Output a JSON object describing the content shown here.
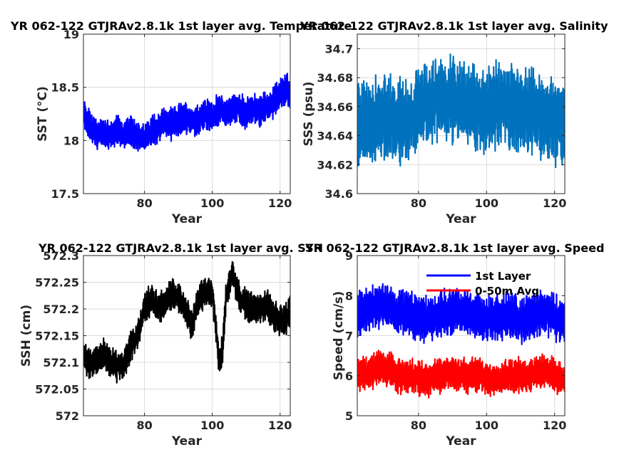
{
  "figure": {
    "background": "#ffffff"
  },
  "chart_data": [
    {
      "type": "line",
      "title": "YR 062-122 GTJRAv2.8.1k 1st layer avg. Temperature",
      "xlabel": "Year",
      "ylabel": "SST (°C)",
      "xlim": [
        62,
        123
      ],
      "ylim": [
        17.5,
        19
      ],
      "xticks": [
        80,
        100,
        120
      ],
      "xtick_labels": [
        "80",
        "100",
        "120"
      ],
      "yticks": [
        17.5,
        18,
        18.5,
        19
      ],
      "ytick_labels": [
        "17.5",
        "18",
        "18.5",
        "19"
      ],
      "grid": true,
      "legend": null,
      "series": [
        {
          "color": "#0000ff",
          "x": [
            62,
            64,
            66,
            68,
            70,
            72,
            74,
            76,
            78,
            80,
            82,
            84,
            86,
            88,
            90,
            92,
            94,
            96,
            98,
            100,
            102,
            104,
            106,
            108,
            110,
            112,
            114,
            116,
            118,
            120,
            122,
            123
          ],
          "values": [
            18.25,
            18.15,
            18.05,
            18.08,
            18.05,
            18.1,
            18.05,
            18.08,
            18.05,
            18.0,
            18.1,
            18.12,
            18.18,
            18.15,
            18.2,
            18.22,
            18.18,
            18.2,
            18.25,
            18.22,
            18.3,
            18.25,
            18.3,
            18.3,
            18.25,
            18.3,
            18.28,
            18.32,
            18.35,
            18.45,
            18.5,
            18.4
          ],
          "amplitude": 0.15
        }
      ]
    },
    {
      "type": "line",
      "title": "YR 062-122 GTJRAv2.8.1k 1st layer avg. Salinity",
      "xlabel": "Year",
      "ylabel": "SSS (psu)",
      "xlim": [
        62,
        123
      ],
      "ylim": [
        34.6,
        34.71
      ],
      "xticks": [
        80,
        100,
        120
      ],
      "xtick_labels": [
        "80",
        "100",
        "120"
      ],
      "yticks": [
        34.6,
        34.62,
        34.64,
        34.66,
        34.68,
        34.7
      ],
      "ytick_labels": [
        "34.6",
        "34.62",
        "34.64",
        "34.66",
        "34.68",
        "34.7"
      ],
      "grid": true,
      "legend": null,
      "series": [
        {
          "color": "#0072bd",
          "x": [
            62,
            66,
            70,
            74,
            78,
            82,
            86,
            90,
            94,
            98,
            102,
            106,
            110,
            114,
            118,
            123
          ],
          "values": [
            34.648,
            34.65,
            34.652,
            34.65,
            34.652,
            34.66,
            34.668,
            34.665,
            34.66,
            34.658,
            34.66,
            34.66,
            34.658,
            34.655,
            34.652,
            34.645
          ],
          "amplitude": 0.03
        }
      ]
    },
    {
      "type": "line",
      "title": "YR 062-122 GTJRAv2.8.1k 1st layer avg. SSH",
      "xlabel": "Year",
      "ylabel": "SSH (cm)",
      "xlim": [
        62,
        123
      ],
      "ylim": [
        572,
        572.3
      ],
      "xticks": [
        80,
        100,
        120
      ],
      "xtick_labels": [
        "80",
        "100",
        "120"
      ],
      "yticks": [
        572,
        572.05,
        572.1,
        572.15,
        572.2,
        572.25,
        572.3
      ],
      "ytick_labels": [
        "572",
        "572.05",
        "572.1",
        "572.15",
        "572.2",
        "572.25",
        "572.3"
      ],
      "grid": true,
      "legend": null,
      "series": [
        {
          "color": "#000000",
          "x": [
            62,
            64,
            66,
            68,
            70,
            72,
            74,
            76,
            78,
            80,
            82,
            84,
            86,
            88,
            90,
            92,
            94,
            96,
            98,
            100,
            101,
            102,
            103,
            104,
            106,
            108,
            110,
            112,
            114,
            116,
            118,
            120,
            122,
            123
          ],
          "values": [
            572.11,
            572.1,
            572.1,
            572.12,
            572.1,
            572.09,
            572.1,
            572.13,
            572.15,
            572.2,
            572.22,
            572.2,
            572.21,
            572.23,
            572.22,
            572.2,
            572.17,
            572.22,
            572.23,
            572.23,
            572.17,
            572.1,
            572.12,
            572.22,
            572.27,
            572.22,
            572.21,
            572.2,
            572.2,
            572.21,
            572.19,
            572.18,
            572.18,
            572.2
          ],
          "amplitude": 0.03
        }
      ]
    },
    {
      "type": "line",
      "title": "YR 062-122 GTJRAv2.8.1k 1st layer avg. Speed",
      "xlabel": "Year",
      "ylabel": "Speed (cm/s)",
      "xlim": [
        62,
        123
      ],
      "ylim": [
        5,
        9
      ],
      "xticks": [
        80,
        100,
        120
      ],
      "xtick_labels": [
        "80",
        "100",
        "120"
      ],
      "yticks": [
        5,
        6,
        7,
        8,
        9
      ],
      "ytick_labels": [
        "5",
        "6",
        "7",
        "8",
        "9"
      ],
      "grid": true,
      "legend": "top-right",
      "series": [
        {
          "name": "1st Layer",
          "color": "#0000ff",
          "x": [
            62,
            66,
            70,
            74,
            78,
            82,
            86,
            90,
            94,
            98,
            102,
            106,
            110,
            114,
            118,
            123
          ],
          "values": [
            7.6,
            7.7,
            7.8,
            7.6,
            7.5,
            7.4,
            7.5,
            7.6,
            7.6,
            7.5,
            7.4,
            7.5,
            7.4,
            7.5,
            7.6,
            7.3
          ],
          "amplitude": 0.6
        },
        {
          "name": "0-50m Avg",
          "color": "#ff0000",
          "x": [
            62,
            66,
            70,
            74,
            78,
            82,
            86,
            90,
            94,
            98,
            102,
            106,
            110,
            114,
            118,
            123
          ],
          "values": [
            6.0,
            6.1,
            6.2,
            6.0,
            6.0,
            5.9,
            6.0,
            6.1,
            6.0,
            6.0,
            5.9,
            6.0,
            6.0,
            6.1,
            6.1,
            5.9
          ],
          "amplitude": 0.45
        }
      ]
    }
  ]
}
